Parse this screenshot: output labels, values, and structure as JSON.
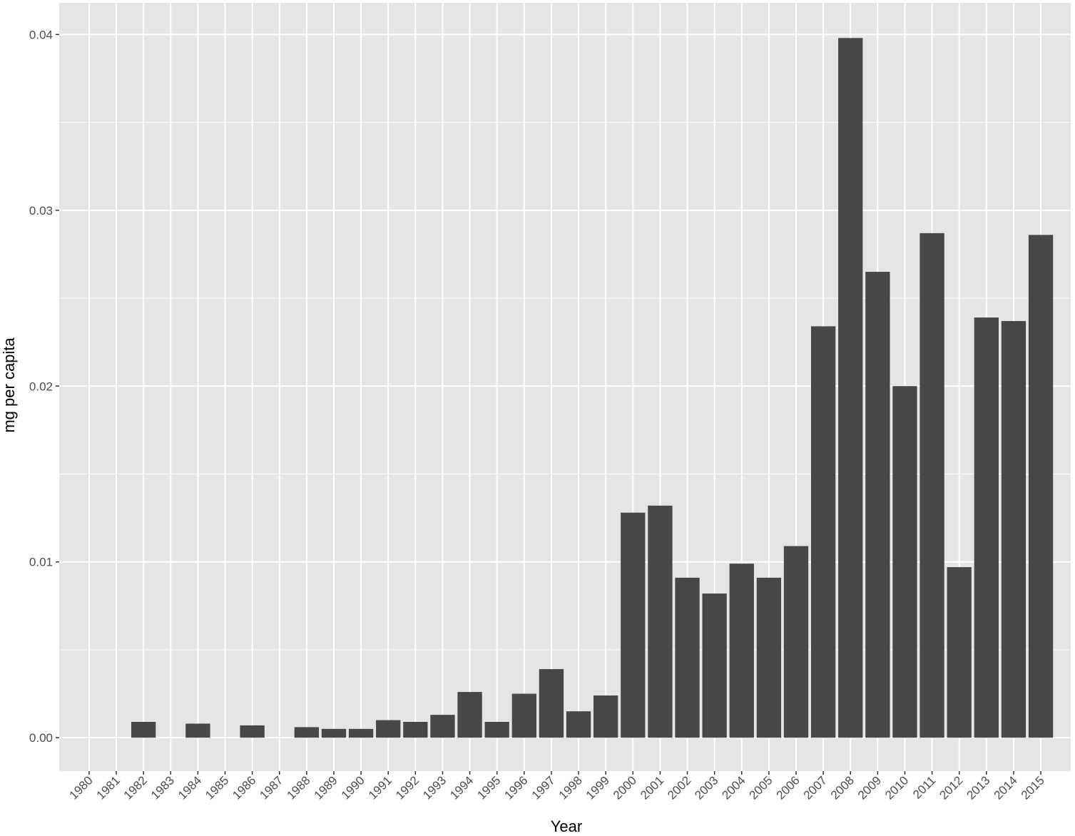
{
  "chart_data": {
    "type": "bar",
    "title": "",
    "xlabel": "Year",
    "ylabel": "mg per capita",
    "categories": [
      "1980",
      "1981",
      "1982",
      "1983",
      "1984",
      "1985",
      "1986",
      "1987",
      "1988",
      "1989",
      "1990",
      "1991",
      "1992",
      "1993",
      "1994",
      "1995",
      "1996",
      "1997",
      "1998",
      "1999",
      "2000",
      "2001",
      "2002",
      "2003",
      "2004",
      "2005",
      "2006",
      "2007",
      "2008",
      "2009",
      "2010",
      "2011",
      "2012",
      "2013",
      "2014",
      "2015"
    ],
    "values": [
      0,
      0,
      0.0009,
      0,
      0.0008,
      0,
      0.0007,
      0,
      0.0006,
      0.0005,
      0.0005,
      0.001,
      0.0009,
      0.0013,
      0.0026,
      0.0009,
      0.0025,
      0.0039,
      0.0015,
      0.0024,
      0.0128,
      0.0132,
      0.0091,
      0.0082,
      0.0099,
      0.0091,
      0.0109,
      0.0234,
      0.0398,
      0.0265,
      0.02,
      0.0287,
      0.0097,
      0.0239,
      0.0237,
      0.0286
    ],
    "yticks": [
      "0.00",
      "0.01",
      "0.02",
      "0.03",
      "0.04"
    ],
    "ylim": [
      -0.0019,
      0.0418
    ],
    "grid": true,
    "colors": {
      "panel": "#e5e5e5",
      "grid": "#ffffff",
      "bar": "#474747",
      "tick_text": "#4d4d4d",
      "axis_title": "#000000"
    }
  }
}
